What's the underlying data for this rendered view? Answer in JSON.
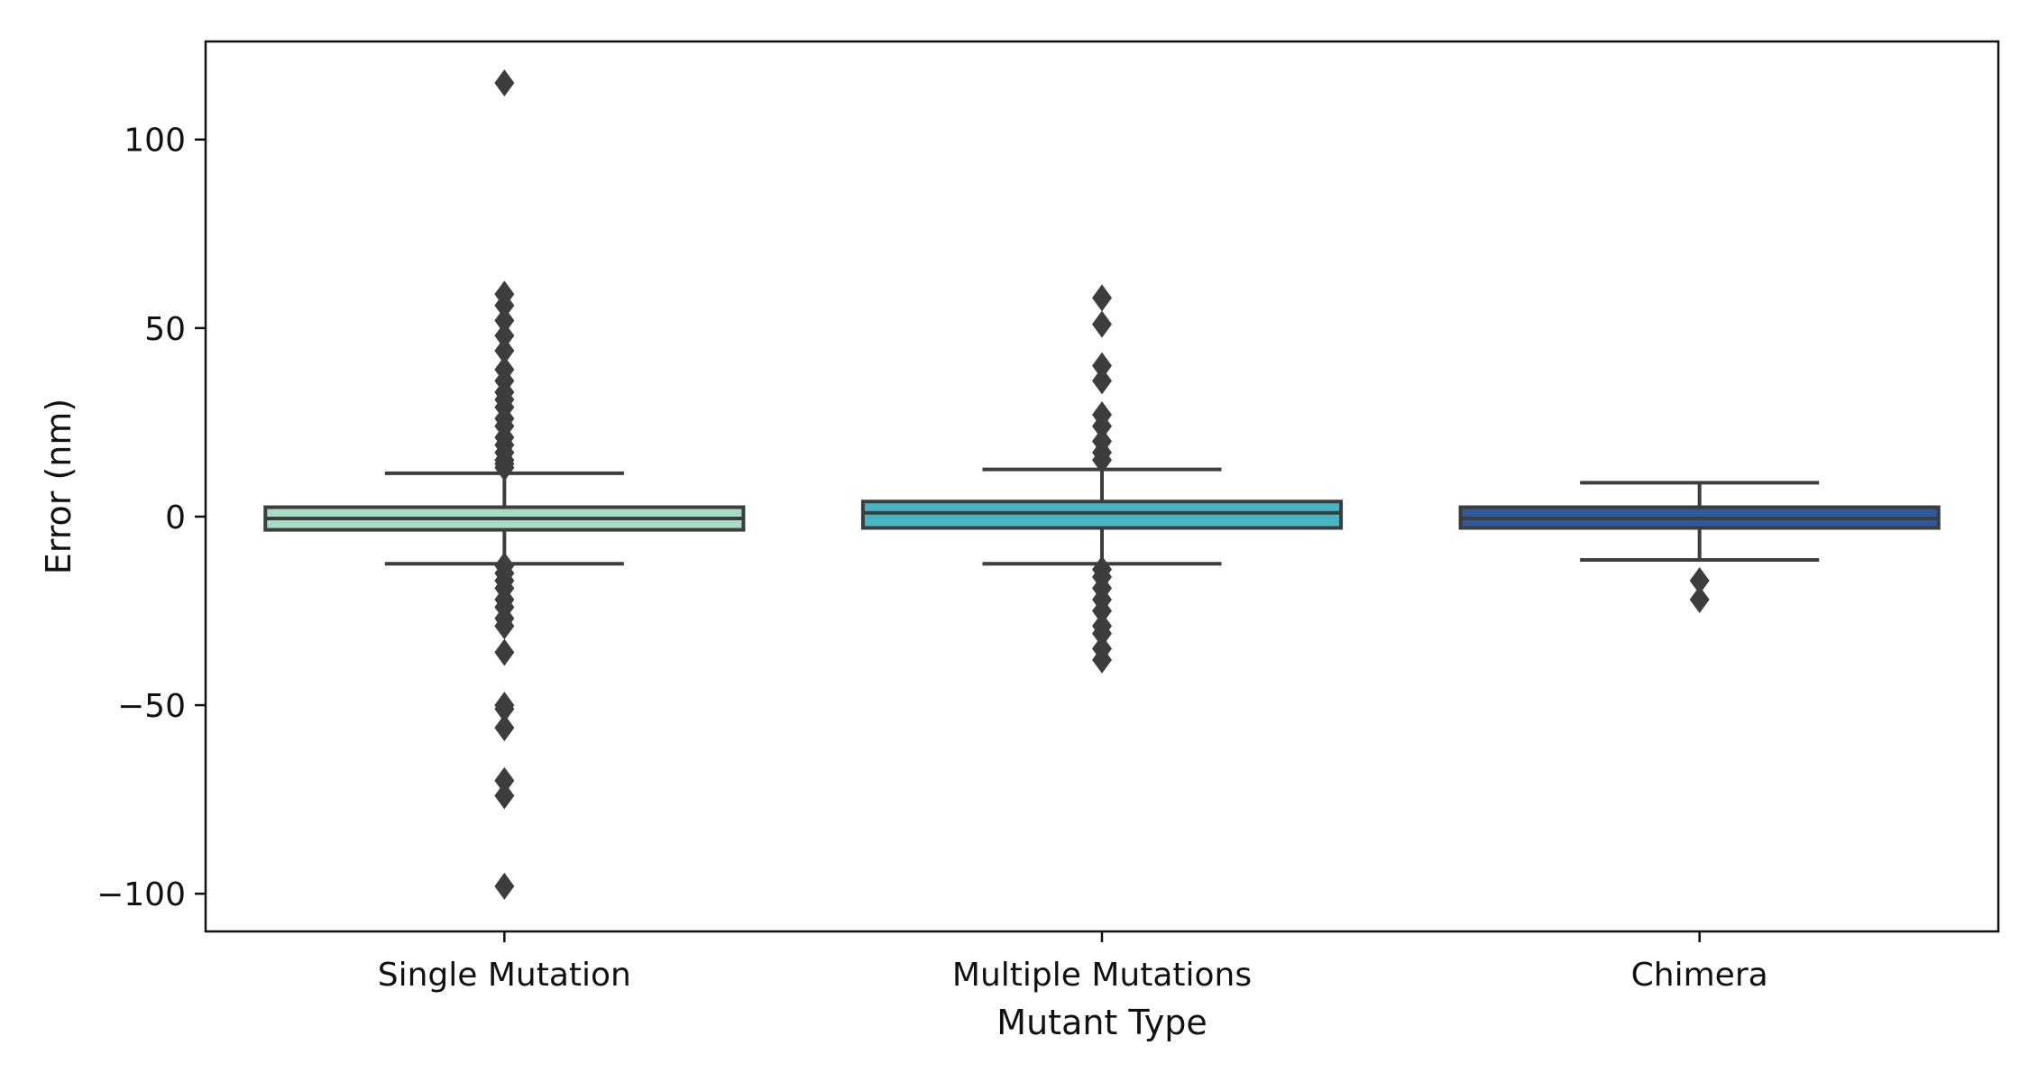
{
  "chart_data": {
    "type": "box",
    "title": "",
    "xlabel": "Mutant Type",
    "ylabel": "Error (nm)",
    "ylim": [
      -110,
      126
    ],
    "yticks": [
      100,
      50,
      0,
      -50,
      -100
    ],
    "ytick_labels": [
      "100",
      "50",
      "0",
      "−50",
      "−100"
    ],
    "grid": false,
    "categories": [
      "Single Mutation",
      "Multiple Mutations",
      "Chimera"
    ],
    "boxes": [
      {
        "category": "Single Mutation",
        "color": "#a8dcc5",
        "q1": -3.5,
        "median": -0.5,
        "q3": 2.5,
        "whisker_low": -12.5,
        "whisker_high": 11.5,
        "outliers_high": [
          115,
          59,
          56,
          52,
          48,
          44,
          39,
          36,
          33,
          31,
          29,
          26,
          24,
          21,
          19,
          17,
          15,
          14,
          13
        ],
        "outliers_low": [
          -13,
          -15,
          -17,
          -19,
          -22,
          -24,
          -27,
          -29,
          -36,
          -50,
          -51,
          -56,
          -70,
          -74,
          -98
        ]
      },
      {
        "category": "Multiple Mutations",
        "color": "#46b5c4",
        "q1": -3,
        "median": 1,
        "q3": 4,
        "whisker_low": -12.5,
        "whisker_high": 12.5,
        "outliers_high": [
          58,
          51,
          40,
          36,
          27,
          24,
          20,
          17,
          15
        ],
        "outliers_low": [
          -14,
          -16,
          -19,
          -22,
          -25,
          -29,
          -31,
          -35,
          -38
        ]
      },
      {
        "category": "Chimera",
        "color": "#2d5b9c",
        "q1": -3,
        "median": -0.5,
        "q3": 2.5,
        "whisker_low": -11.5,
        "whisker_high": 9,
        "outliers_high": [],
        "outliers_low": [
          -17,
          -22
        ]
      }
    ],
    "style": {
      "axis_color": "#111111",
      "box_edge_color": "#3d3d3d",
      "outlier_color": "#3d3d3d"
    }
  }
}
